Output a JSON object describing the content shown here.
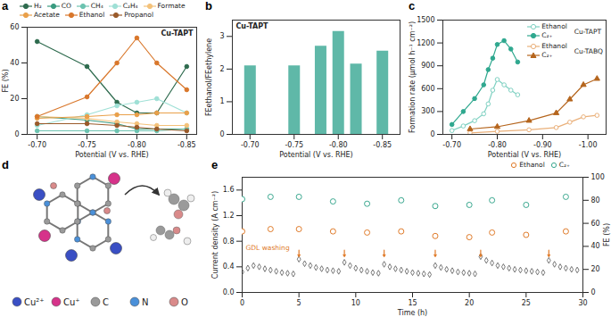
{
  "chart_data": [
    {
      "panel": "a",
      "type": "line",
      "annotations": [
        "Cu-TAPT"
      ],
      "x_label": "Potential (V vs. RHE)",
      "y_label": "FE (%)",
      "x": [
        -0.7,
        -0.75,
        -0.78,
        -0.8,
        -0.82,
        -0.85
      ],
      "xlim": [
        -0.69,
        -0.86
      ],
      "xticks": [
        {
          "value": -0.7,
          "label": "-0.70"
        },
        {
          "value": -0.75,
          "label": "-0.75"
        },
        {
          "value": -0.8,
          "label": "-0.80"
        },
        {
          "value": -0.85,
          "label": "-0.85"
        }
      ],
      "ylim": [
        0,
        60
      ],
      "yticks": [
        0,
        20,
        40,
        60
      ],
      "legend": "top",
      "series": [
        {
          "name": "H₂",
          "color": "#2e6b4e",
          "marker": "circle",
          "values": [
            52,
            38,
            18,
            12,
            12,
            38
          ]
        },
        {
          "name": "CO",
          "color": "#3a9b80",
          "marker": "circle",
          "values": [
            10,
            8,
            6,
            3,
            3,
            3
          ]
        },
        {
          "name": "CH₄",
          "color": "#6cc3b0",
          "marker": "circle",
          "values": [
            2,
            2,
            2,
            2,
            2,
            3
          ]
        },
        {
          "name": "C₂H₄",
          "color": "#9fe0d6",
          "marker": "circle",
          "values": [
            5,
            11,
            16,
            18,
            20,
            12
          ]
        },
        {
          "name": "Formate",
          "color": "#f4c27a",
          "marker": "circle",
          "values": [
            10,
            9,
            7,
            6,
            5,
            5
          ]
        },
        {
          "name": "Acetate",
          "color": "#e9a04a",
          "marker": "circle",
          "values": [
            9,
            10,
            11,
            11,
            12,
            12
          ]
        },
        {
          "name": "Ethanol",
          "color": "#d9772b",
          "marker": "circle",
          "values": [
            10,
            21,
            40,
            54,
            40,
            25
          ]
        },
        {
          "name": "Propanol",
          "color": "#9a5a2a",
          "marker": "circle",
          "values": [
            6,
            6,
            5,
            4,
            3,
            2
          ]
        }
      ]
    },
    {
      "panel": "b",
      "type": "bar",
      "annotations": [
        "Cu-TAPT"
      ],
      "x_label": "Potential (V vs. RHE)",
      "y_label": "FEethanol/FEethylene",
      "x": [
        -0.7,
        -0.75,
        -0.78,
        -0.8,
        -0.82,
        -0.85
      ],
      "values": [
        2.1,
        2.1,
        2.7,
        3.15,
        2.15,
        2.55
      ],
      "color": "#5fb8a8",
      "xlim": [
        -0.68,
        -0.87
      ],
      "xticks": [
        {
          "value": -0.7,
          "label": "-0.70"
        },
        {
          "value": -0.75,
          "label": "-0.75"
        },
        {
          "value": -0.8,
          "label": "-0.80"
        },
        {
          "value": -0.85,
          "label": "-0.85"
        }
      ],
      "ylim": [
        0,
        3.5
      ],
      "yticks": [
        0,
        1,
        2,
        3
      ]
    },
    {
      "panel": "c",
      "type": "line",
      "x_label": "Potential (V vs. RHE)",
      "y_label": "Formation rate (μmol h⁻¹ cm⁻²)",
      "xlim": [
        -0.68,
        -1.04
      ],
      "xticks": [
        {
          "value": -0.7,
          "label": "-0.70"
        },
        {
          "value": -0.8,
          "label": "-0.80"
        },
        {
          "value": -0.9,
          "label": "-0.90"
        },
        {
          "value": -1,
          "label": "-1.00"
        }
      ],
      "ylim": [
        0,
        1500
      ],
      "yticks": [
        0,
        300,
        600,
        900,
        1200,
        1500
      ],
      "legend": "top-right",
      "series": [
        {
          "name": "Ethanol",
          "group": "Cu-TAPT",
          "color": "#7fd1c2",
          "marker": "circle-open",
          "x": [
            -0.7,
            -0.725,
            -0.75,
            -0.77,
            -0.78,
            -0.79,
            -0.8,
            -0.815,
            -0.83,
            -0.845
          ],
          "values": [
            50,
            110,
            180,
            270,
            400,
            580,
            720,
            650,
            580,
            520
          ]
        },
        {
          "name": "C₂₊",
          "group": "Cu-TAPT",
          "color": "#2fa88f",
          "marker": "circle",
          "x": [
            -0.7,
            -0.725,
            -0.75,
            -0.77,
            -0.78,
            -0.79,
            -0.8,
            -0.815,
            -0.83,
            -0.845
          ],
          "values": [
            130,
            300,
            470,
            650,
            850,
            1000,
            1180,
            1230,
            1120,
            950
          ]
        },
        {
          "name": "Ethanol",
          "group": "Cu-TABQ",
          "color": "#eab07a",
          "marker": "circle-open",
          "x": [
            -0.74,
            -0.8,
            -0.87,
            -0.93,
            -0.96,
            -0.99,
            -1.02
          ],
          "values": [
            20,
            40,
            60,
            90,
            160,
            230,
            250
          ]
        },
        {
          "name": "C₂₊",
          "group": "Cu-TABQ",
          "color": "#b5651d",
          "marker": "triangle",
          "x": [
            -0.74,
            -0.8,
            -0.87,
            -0.93,
            -0.96,
            -0.99,
            -1.02
          ],
          "values": [
            70,
            100,
            180,
            280,
            460,
            650,
            730
          ]
        }
      ]
    },
    {
      "panel": "e",
      "type": "scatter",
      "annotations": [
        "GDL washing"
      ],
      "x_label": "Time (h)",
      "y_label": "Current density (A cm⁻²)",
      "y2_label": "FE (%)",
      "washing_times": [
        5,
        9,
        12.5,
        17,
        21,
        27
      ],
      "xlim": [
        0,
        30
      ],
      "xticks": [
        0,
        5,
        10,
        15,
        20,
        25,
        30
      ],
      "ylim": [
        0,
        1.8
      ],
      "yticks": [
        {
          "value": 0,
          "label": "0.0"
        },
        0.4,
        0.8,
        1.2,
        1.6
      ],
      "y2lim": [
        0,
        100
      ],
      "y2ticks": [
        0,
        20,
        40,
        60,
        80,
        100
      ],
      "color": "#555555",
      "marker": "diamond-open",
      "x": [
        0,
        0.5,
        1,
        1.5,
        2,
        2.5,
        3,
        3.5,
        4,
        4.5,
        5,
        5.5,
        6,
        6.5,
        7,
        7.5,
        8,
        8.5,
        9,
        9.5,
        10,
        10.5,
        11,
        11.5,
        12,
        12.5,
        13,
        13.5,
        14,
        14.5,
        15,
        15.5,
        16,
        16.5,
        17,
        17.5,
        18,
        18.5,
        19,
        19.5,
        20,
        20.5,
        21,
        21.5,
        22,
        22.5,
        23,
        23.5,
        24,
        24.5,
        25,
        25.5,
        26,
        26.5,
        27,
        27.5,
        28,
        28.5,
        29,
        29.5
      ],
      "values": [
        0.32,
        0.38,
        0.42,
        0.4,
        0.37,
        0.35,
        0.33,
        0.31,
        0.3,
        0.29,
        0.52,
        0.45,
        0.42,
        0.39,
        0.37,
        0.35,
        0.34,
        0.33,
        0.47,
        0.42,
        0.38,
        0.35,
        0.33,
        0.31,
        0.3,
        0.44,
        0.4,
        0.37,
        0.35,
        0.33,
        0.31,
        0.3,
        0.29,
        0.28,
        0.42,
        0.39,
        0.36,
        0.34,
        0.32,
        0.31,
        0.3,
        0.29,
        0.56,
        0.5,
        0.46,
        0.42,
        0.4,
        0.38,
        0.36,
        0.35,
        0.34,
        0.33,
        0.32,
        0.31,
        0.5,
        0.44,
        0.4,
        0.38,
        0.36,
        0.35
      ],
      "legend": "top-right",
      "series": [
        {
          "name": "Ethanol",
          "axis": "y2",
          "color": "#e07b2a",
          "marker": "circle-open",
          "x": [
            0,
            2.5,
            5,
            8,
            11,
            14,
            17,
            20,
            22,
            25,
            28.5
          ],
          "values": [
            53,
            55,
            55,
            53,
            52,
            53,
            49,
            48,
            52,
            50,
            53
          ]
        },
        {
          "name": "C₂₊",
          "axis": "y2",
          "color": "#3aa88f",
          "marker": "circle-open",
          "x": [
            0,
            2.5,
            5,
            8,
            11,
            14,
            17,
            20,
            22,
            25,
            28.5
          ],
          "values": [
            81,
            83,
            83,
            79,
            77,
            80,
            75,
            76,
            80,
            76,
            83
          ]
        }
      ]
    }
  ],
  "diagram": {
    "panel": "d",
    "legend": [
      {
        "label": "Cu²⁺",
        "color": "#3a4fc4"
      },
      {
        "label": "Cu⁺",
        "color": "#d6338a"
      },
      {
        "label": "C",
        "color": "#9a9a9a"
      },
      {
        "label": "N",
        "color": "#4a90d9"
      },
      {
        "label": "O",
        "color": "#d98a8a"
      }
    ]
  }
}
